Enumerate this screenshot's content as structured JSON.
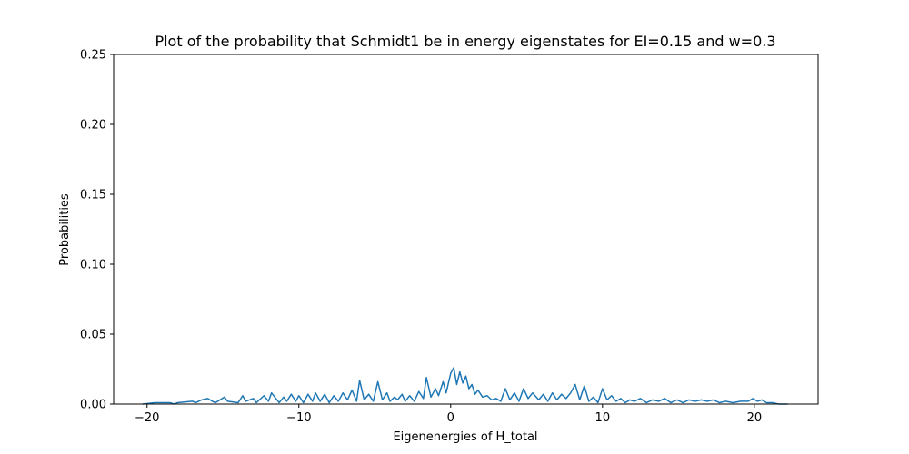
{
  "chart_data": {
    "type": "line",
    "title": "Plot of the probability that Schmidt1 be in energy eigenstates for EI=0.15 and w=0.3",
    "xlabel": "Eigenenergies of H_total",
    "ylabel": "Probabilities",
    "xlim": [
      -22.2,
      24.2
    ],
    "ylim": [
      0,
      0.25
    ],
    "grid": false,
    "legend": "none",
    "line_color": "#1f77b4",
    "xticks": [
      {
        "value": -20,
        "label": "−20"
      },
      {
        "value": -10,
        "label": "−10"
      },
      {
        "value": 0,
        "label": "0"
      },
      {
        "value": 10,
        "label": "10"
      },
      {
        "value": 20,
        "label": "20"
      }
    ],
    "yticks": [
      {
        "value": 0.0,
        "label": "0.00"
      },
      {
        "value": 0.05,
        "label": "0.05"
      },
      {
        "value": 0.1,
        "label": "0.10"
      },
      {
        "value": 0.15,
        "label": "0.15"
      },
      {
        "value": 0.2,
        "label": "0.20"
      },
      {
        "value": 0.25,
        "label": "0.25"
      }
    ],
    "series": [
      {
        "x": [
          -20.3,
          -19.5,
          -18.5,
          -18.2,
          -18.0,
          -17.0,
          -16.8,
          -16.4,
          -16.0,
          -15.7,
          -15.5,
          -14.9,
          -14.7,
          -14.0,
          -13.7,
          -13.5,
          -13.0,
          -12.8,
          -12.3,
          -12.0,
          -11.8,
          -11.3,
          -11.0,
          -10.8,
          -10.5,
          -10.2,
          -10.0,
          -9.7,
          -9.4,
          -9.1,
          -8.9,
          -8.6,
          -8.3,
          -8.0,
          -7.7,
          -7.4,
          -7.1,
          -6.8,
          -6.5,
          -6.2,
          -6.0,
          -5.7,
          -5.4,
          -5.1,
          -4.8,
          -4.5,
          -4.2,
          -4.0,
          -3.7,
          -3.5,
          -3.2,
          -3.0,
          -2.7,
          -2.4,
          -2.1,
          -1.8,
          -1.6,
          -1.3,
          -1.0,
          -0.8,
          -0.5,
          -0.3,
          0.0,
          0.2,
          0.4,
          0.6,
          0.8,
          1.0,
          1.2,
          1.4,
          1.6,
          1.8,
          2.1,
          2.4,
          2.7,
          3.0,
          3.3,
          3.6,
          3.9,
          4.2,
          4.5,
          4.8,
          5.1,
          5.4,
          5.8,
          6.1,
          6.4,
          6.7,
          7.0,
          7.3,
          7.6,
          7.9,
          8.2,
          8.5,
          8.8,
          9.1,
          9.4,
          9.7,
          10.0,
          10.3,
          10.6,
          10.9,
          11.2,
          11.5,
          11.8,
          12.1,
          12.5,
          12.9,
          13.3,
          13.7,
          14.1,
          14.5,
          14.9,
          15.3,
          15.7,
          16.1,
          16.5,
          16.9,
          17.3,
          17.7,
          18.1,
          18.6,
          19.1,
          19.6,
          19.9,
          20.2,
          20.5,
          20.8,
          21.2,
          21.6,
          22.2
        ],
        "y": [
          0.0,
          0.001,
          0.001,
          0.0,
          0.001,
          0.002,
          0.001,
          0.003,
          0.004,
          0.002,
          0.001,
          0.005,
          0.002,
          0.001,
          0.006,
          0.002,
          0.004,
          0.001,
          0.006,
          0.002,
          0.008,
          0.001,
          0.005,
          0.002,
          0.007,
          0.002,
          0.006,
          0.001,
          0.007,
          0.002,
          0.008,
          0.002,
          0.007,
          0.001,
          0.006,
          0.002,
          0.008,
          0.003,
          0.01,
          0.002,
          0.017,
          0.003,
          0.007,
          0.002,
          0.016,
          0.003,
          0.008,
          0.002,
          0.005,
          0.003,
          0.007,
          0.002,
          0.006,
          0.002,
          0.009,
          0.004,
          0.019,
          0.005,
          0.011,
          0.006,
          0.016,
          0.008,
          0.022,
          0.026,
          0.014,
          0.023,
          0.015,
          0.02,
          0.011,
          0.014,
          0.007,
          0.01,
          0.005,
          0.006,
          0.003,
          0.004,
          0.002,
          0.011,
          0.003,
          0.008,
          0.002,
          0.011,
          0.004,
          0.008,
          0.003,
          0.007,
          0.002,
          0.008,
          0.003,
          0.007,
          0.004,
          0.008,
          0.014,
          0.003,
          0.013,
          0.002,
          0.005,
          0.001,
          0.011,
          0.003,
          0.006,
          0.002,
          0.004,
          0.001,
          0.003,
          0.002,
          0.004,
          0.001,
          0.003,
          0.002,
          0.004,
          0.001,
          0.003,
          0.001,
          0.003,
          0.002,
          0.003,
          0.002,
          0.003,
          0.001,
          0.002,
          0.001,
          0.002,
          0.002,
          0.004,
          0.002,
          0.003,
          0.001,
          0.001,
          0.0,
          0.0
        ]
      }
    ]
  }
}
